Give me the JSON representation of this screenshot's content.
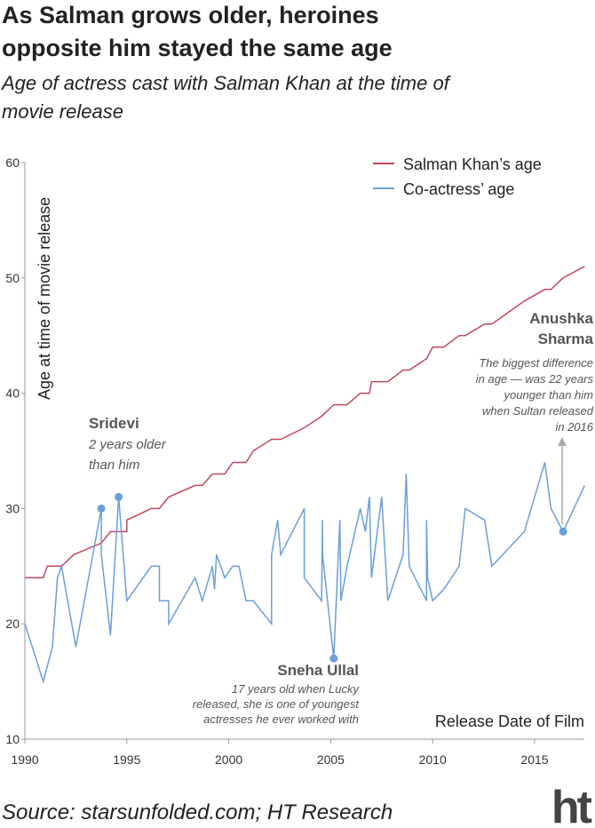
{
  "chart_data": {
    "type": "line",
    "title": [
      "As Salman grows older, heroines",
      "opposite him stayed the same age"
    ],
    "subtitle": [
      "Age of actress cast with Salman Khan at the time of",
      "movie release"
    ],
    "ylabel": "Age at time of movie release",
    "xlabel": "Release Date of Film",
    "source": "Source: starsunfolded.com; HT Research",
    "logo": "ht",
    "legend": "top-right",
    "xlim": [
      1990,
      2017.45
    ],
    "xticks": [
      1990,
      1995,
      2000,
      2005,
      2010,
      2015
    ],
    "ylim": [
      10,
      60
    ],
    "yticks": [
      10,
      20,
      30,
      40,
      50,
      60
    ],
    "series": [
      {
        "name": "Salman Khan’s age",
        "color": "#c0495f",
        "x": [
          1990,
          1990.9,
          1991.1,
          1991.8,
          1992.4,
          1993.75,
          1994.2,
          1995,
          1995,
          1996.2,
          1996.6,
          1997.05,
          1998.35,
          1998.7,
          1999.2,
          1999.8,
          2000.2,
          2000.85,
          2001.2,
          2002.1,
          2002.55,
          2003.7,
          2004.55,
          2005.15,
          2005.8,
          2006.45,
          2006.9,
          2007,
          2007.8,
          2008.55,
          2008.85,
          2009.7,
          2010,
          2010.55,
          2011.3,
          2011.6,
          2012.55,
          2012.9,
          2014.5,
          2015.5,
          2015.8,
          2016.4,
          2017.45
        ],
        "values": [
          24,
          24,
          25,
          25,
          26,
          27,
          28,
          28,
          29,
          30,
          30,
          31,
          32,
          32,
          33,
          33,
          34,
          34,
          35,
          36,
          36,
          37,
          38,
          39,
          39,
          40,
          40,
          41,
          41,
          42,
          42,
          43,
          44,
          44,
          45,
          45,
          46,
          46,
          48,
          49,
          49,
          50,
          51
        ]
      },
      {
        "name": "Co-actress’ age",
        "color": "#6a9fd8",
        "x": [
          1990,
          1990.9,
          1991.35,
          1991.6,
          1991.8,
          1992.5,
          1993.75,
          1993.75,
          1994.2,
          1994.6,
          1995,
          1996.2,
          1996.6,
          1996.6,
          1997.05,
          1997.05,
          1998.35,
          1998.7,
          1999.2,
          1999.3,
          1999.4,
          1999.8,
          2000.2,
          2000.5,
          2000.85,
          2001.2,
          2002.1,
          2002.1,
          2002.4,
          2002.55,
          2003.7,
          2003.7,
          2004.55,
          2004.6,
          2004.6,
          2005.15,
          2005.45,
          2005.5,
          2005.8,
          2006.45,
          2006.7,
          2006.9,
          2007,
          2007.5,
          2007.8,
          2008.55,
          2008.7,
          2008.85,
          2009.7,
          2009.7,
          2009.75,
          2010,
          2010.55,
          2011.3,
          2011.6,
          2012.55,
          2012.9,
          2014.5,
          2015.5,
          2015.8,
          2016.4,
          2017.45
        ],
        "values": [
          20,
          15,
          18,
          24,
          25,
          18,
          30,
          26,
          19,
          31,
          22,
          25,
          25,
          22,
          22,
          20,
          24,
          22,
          25,
          23,
          26,
          24,
          25,
          25,
          22,
          22,
          20,
          26,
          29,
          26,
          30,
          24,
          22,
          29,
          26,
          17,
          29,
          22,
          25,
          30,
          28,
          31,
          24,
          31,
          22,
          26,
          33,
          25,
          22,
          29,
          24,
          22,
          23,
          25,
          30,
          29,
          25,
          28,
          34,
          30,
          28,
          32
        ]
      }
    ],
    "annotations": [
      {
        "name": "Sridevi",
        "text": [
          "2 years older",
          "than him"
        ]
      },
      {
        "name": "Sneha Ullal",
        "text": [
          "17 years old when Lucky",
          "released, she is one of youngest",
          "actresses he ever worked with"
        ]
      },
      {
        "name": [
          "Anushka",
          "Sharma"
        ],
        "text": [
          "The biggest difference",
          "in age — was 22 years",
          "younger than him",
          "when Sultan released",
          "in 2016"
        ]
      }
    ]
  }
}
